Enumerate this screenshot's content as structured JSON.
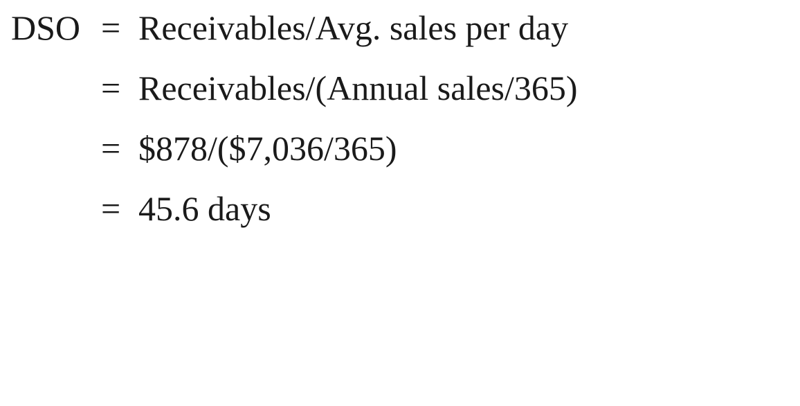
{
  "formula": {
    "lhs": "DSO",
    "lines": [
      {
        "operator": "=",
        "expression": "Receivables/Avg. sales per day"
      },
      {
        "operator": "=",
        "expression": "Receivables/(Annual sales/365)"
      },
      {
        "operator": "=",
        "expression": "$878/($7,036/365)"
      },
      {
        "operator": "=",
        "expression": "45.6 days"
      }
    ]
  }
}
